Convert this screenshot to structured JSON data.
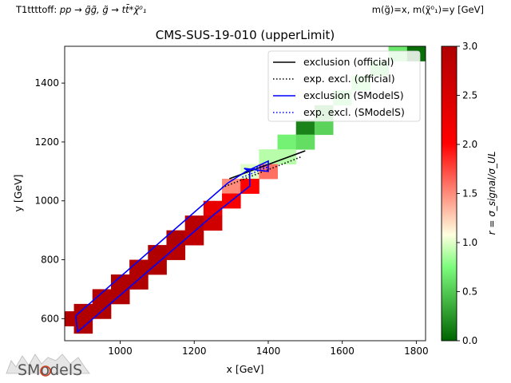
{
  "header": {
    "process_prefix": "T1ttttoff: ",
    "process_formula": "pp → g̃g̃, g̃ → tt̄*χ̃⁰₁",
    "mass_label": "m(g̃)=x, m(χ̃⁰₁)=y [GeV]"
  },
  "logo": {
    "text": "SModelS"
  },
  "chart_data": {
    "type": "heatmap",
    "title": "CMS-SUS-19-010 (upperLimit)",
    "xlabel": "x [GeV]",
    "ylabel": "y [GeV]",
    "xlim": [
      850,
      1825
    ],
    "ylim": [
      525,
      1525
    ],
    "xticks": [
      1000,
      1200,
      1400,
      1600,
      1800
    ],
    "yticks": [
      600,
      800,
      1000,
      1200,
      1400
    ],
    "cell_size": [
      50,
      50
    ],
    "colorbar": {
      "label": "r = σ_signal/σ_UL",
      "range": [
        0.0,
        3.0
      ],
      "ticks": [
        "0.0",
        "0.5",
        "1.0",
        "1.5",
        "2.0",
        "2.5",
        "3.0"
      ],
      "colors": [
        "#006400",
        "#7cfc7c",
        "#ffffe0",
        "#ff0000",
        "#b00000"
      ]
    },
    "cells": [
      {
        "x": 850,
        "y": 600,
        "r": 3.0
      },
      {
        "x": 900,
        "y": 625,
        "r": 3.0
      },
      {
        "x": 900,
        "y": 575,
        "r": 3.0
      },
      {
        "x": 950,
        "y": 675,
        "r": 3.0
      },
      {
        "x": 950,
        "y": 625,
        "r": 3.0
      },
      {
        "x": 1000,
        "y": 725,
        "r": 3.0
      },
      {
        "x": 1000,
        "y": 675,
        "r": 3.0
      },
      {
        "x": 1050,
        "y": 775,
        "r": 3.0
      },
      {
        "x": 1050,
        "y": 725,
        "r": 3.0
      },
      {
        "x": 1100,
        "y": 825,
        "r": 3.0
      },
      {
        "x": 1100,
        "y": 775,
        "r": 3.0
      },
      {
        "x": 1150,
        "y": 875,
        "r": 3.0
      },
      {
        "x": 1150,
        "y": 825,
        "r": 2.9
      },
      {
        "x": 1200,
        "y": 925,
        "r": 2.9
      },
      {
        "x": 1200,
        "y": 875,
        "r": 2.8
      },
      {
        "x": 1250,
        "y": 975,
        "r": 2.3
      },
      {
        "x": 1250,
        "y": 925,
        "r": 2.6
      },
      {
        "x": 1300,
        "y": 1050,
        "r": 1.5
      },
      {
        "x": 1300,
        "y": 1000,
        "r": 2.1
      },
      {
        "x": 1350,
        "y": 1100,
        "r": 1.0
      },
      {
        "x": 1350,
        "y": 1050,
        "r": 2.0
      },
      {
        "x": 1400,
        "y": 1150,
        "r": 0.9
      },
      {
        "x": 1400,
        "y": 1100,
        "r": 1.6
      },
      {
        "x": 1450,
        "y": 1200,
        "r": 0.7
      },
      {
        "x": 1450,
        "y": 1150,
        "r": 0.9
      },
      {
        "x": 1500,
        "y": 1250,
        "r": 0.15
      },
      {
        "x": 1500,
        "y": 1200,
        "r": 0.6
      },
      {
        "x": 1550,
        "y": 1300,
        "r": 0.4
      },
      {
        "x": 1550,
        "y": 1250,
        "r": 0.55
      },
      {
        "x": 1600,
        "y": 1350,
        "r": 0.7
      },
      {
        "x": 1650,
        "y": 1400,
        "r": 0.75
      },
      {
        "x": 1700,
        "y": 1450,
        "r": 0.6
      },
      {
        "x": 1750,
        "y": 1500,
        "r": 0.65
      },
      {
        "x": 1800,
        "y": 1500,
        "r": 0.05
      }
    ],
    "series": [
      {
        "name": "exclusion (official)",
        "color": "#000000",
        "style": "solid",
        "x": [
          1295,
          1500
        ],
        "y": [
          1075,
          1170
        ]
      },
      {
        "name": "exp. excl. (official)",
        "color": "#000000",
        "style": "dotted",
        "x": [
          1275,
          1490
        ],
        "y": [
          1045,
          1150
        ]
      },
      {
        "name": "exclusion (SModelS)",
        "color": "#0000ff",
        "style": "solid",
        "x": [
          880,
          1290,
          1340,
          1400,
          1400,
          1335,
          1350,
          1350,
          1250,
          885,
          880
        ],
        "y": [
          610,
          1060,
          1100,
          1135,
          1100,
          1110,
          1100,
          1050,
          950,
          555,
          610
        ]
      },
      {
        "name": "exp. excl. (SModelS)",
        "color": "#0000ff",
        "style": "dotted",
        "x": [
          1330,
          1400,
          1345,
          1400
        ],
        "y": [
          1080,
          1115,
          1105,
          1125
        ]
      }
    ],
    "legend": "upper right"
  }
}
